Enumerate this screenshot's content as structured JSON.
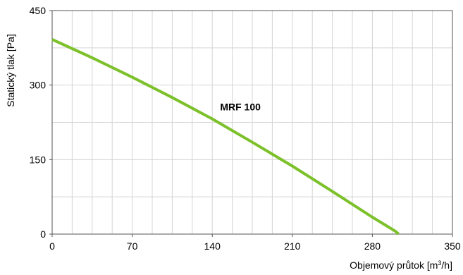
{
  "chart_data": {
    "type": "line",
    "title": "",
    "xlabel_text": "Objemový průtok [m",
    "xlabel_sup": "3",
    "xlabel_suffix": "/h]",
    "ylabel": "Statický tlak [Pa]",
    "xlim": [
      0,
      350
    ],
    "ylim": [
      0,
      450
    ],
    "x_ticks": [
      0,
      70,
      140,
      210,
      280,
      350
    ],
    "y_ticks": [
      0,
      150,
      300,
      450
    ],
    "x_minor_step": 17.5,
    "y_minor_step": 75,
    "grid": true,
    "series": [
      {
        "name": "MRF 100",
        "color": "#7cc02a",
        "x": [
          0,
          35,
          70,
          105,
          140,
          175,
          210,
          245,
          280,
          300,
          303
        ],
        "y": [
          392,
          355,
          316,
          275,
          232,
          185,
          137,
          86,
          34,
          6,
          0
        ]
      }
    ],
    "annotations": [
      {
        "text": "MRF 100",
        "x": 145,
        "y": 228
      }
    ]
  }
}
